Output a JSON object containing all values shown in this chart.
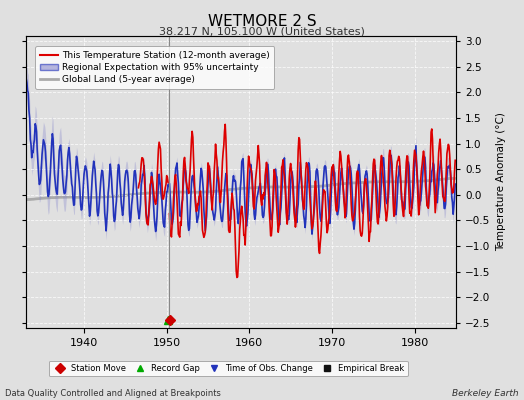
{
  "title": "WETMORE 2 S",
  "subtitle": "38.217 N, 105.100 W (United States)",
  "xlabel_bottom": "Data Quality Controlled and Aligned at Breakpoints",
  "xlabel_right": "Berkeley Earth",
  "ylabel_right": "Temperature Anomaly (°C)",
  "xlim": [
    1933,
    1985
  ],
  "ylim": [
    -2.6,
    3.1
  ],
  "yticks": [
    -2.5,
    -2,
    -1.5,
    -1,
    -0.5,
    0,
    0.5,
    1,
    1.5,
    2,
    2.5,
    3
  ],
  "xticks": [
    1940,
    1950,
    1960,
    1970,
    1980
  ],
  "bg_color": "#e0e0e0",
  "plot_bg_color": "#e0e0e0",
  "vertical_line_x": 1950.3,
  "legend_items": [
    {
      "label": "This Temperature Station (12-month average)",
      "color": "#dd0000",
      "lw": 1.2
    },
    {
      "label": "Regional Expectation with 95% uncertainty",
      "color": "#2233bb",
      "lw": 1.2
    },
    {
      "label": "Global Land (5-year average)",
      "color": "#aaaaaa",
      "lw": 2.0
    }
  ],
  "bottom_legend_items": [
    {
      "label": "Station Move",
      "marker": "D",
      "color": "#cc0000"
    },
    {
      "label": "Record Gap",
      "marker": "^",
      "color": "#00aa00"
    },
    {
      "label": "Time of Obs. Change",
      "marker": "v",
      "color": "#2233bb"
    },
    {
      "label": "Empirical Break",
      "marker": "s",
      "color": "#111111"
    }
  ],
  "station_move_x": 1950.42,
  "record_gap_x": 1950.17,
  "figsize": [
    5.24,
    4.0
  ],
  "dpi": 100
}
